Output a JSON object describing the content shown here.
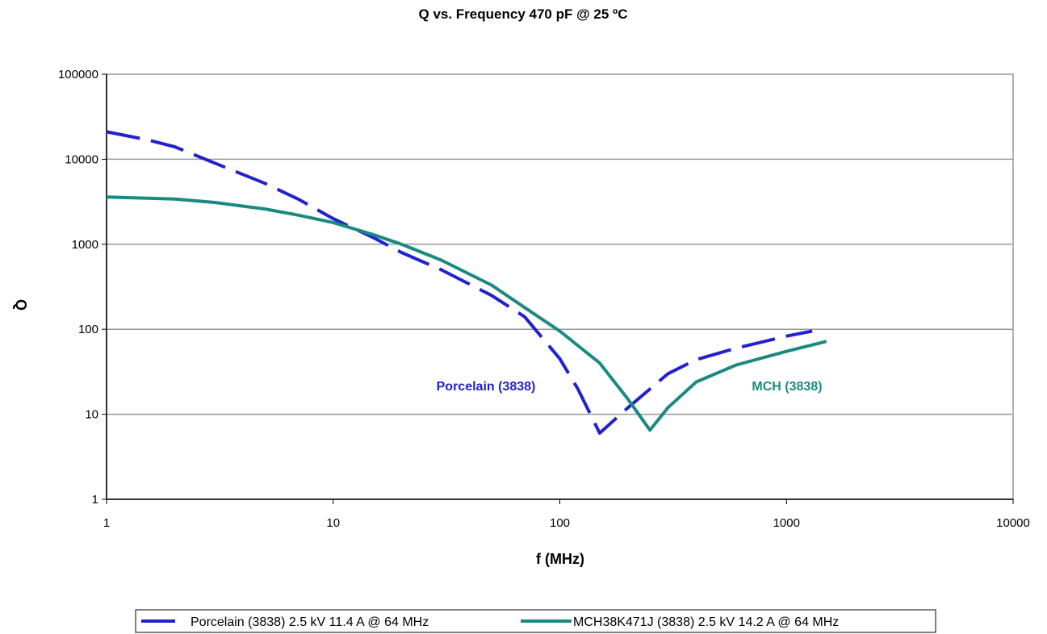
{
  "chart_data": {
    "type": "line",
    "title": "Q vs. Frequency 470 pF @ 25 ºC",
    "xlabel": "f (MHz)",
    "ylabel": "Q",
    "x_scale": "log",
    "y_scale": "log",
    "xlim": [
      1,
      10000
    ],
    "ylim": [
      1,
      100000
    ],
    "x_ticks": [
      "1",
      "10",
      "100",
      "1000",
      "10000"
    ],
    "y_ticks": [
      "1",
      "10",
      "100",
      "1000",
      "10000",
      "100000"
    ],
    "grid": "horizontal",
    "legend_placement": "bottom",
    "series": [
      {
        "name": "Porcelain (3838) 2.5 kV 11.4 A @ 64 MHz",
        "color": "#2222cc",
        "dash": "dashed",
        "annotation": "Porcelain (3838)",
        "x": [
          1,
          1.5,
          2,
          3,
          5,
          7,
          10,
          15,
          20,
          30,
          50,
          70,
          100,
          120,
          150,
          200,
          300,
          400,
          600,
          1000,
          1300
        ],
        "y": [
          21000,
          17000,
          14000,
          9000,
          5200,
          3400,
          2000,
          1200,
          800,
          500,
          250,
          140,
          45,
          20,
          6,
          12,
          30,
          44,
          60,
          83,
          95
        ]
      },
      {
        "name": "MCH38K471J (3838) 2.5 kV 14.2 A @ 64 MHz",
        "color": "#1a8a80",
        "dash": "solid",
        "annotation": "MCH (3838)",
        "x": [
          1,
          2,
          3,
          5,
          7,
          10,
          15,
          20,
          30,
          50,
          70,
          100,
          150,
          200,
          250,
          300,
          400,
          600,
          1000,
          1500
        ],
        "y": [
          3600,
          3400,
          3100,
          2600,
          2200,
          1800,
          1300,
          1000,
          650,
          330,
          180,
          95,
          40,
          15,
          6.5,
          12,
          24,
          38,
          55,
          72
        ]
      }
    ]
  }
}
